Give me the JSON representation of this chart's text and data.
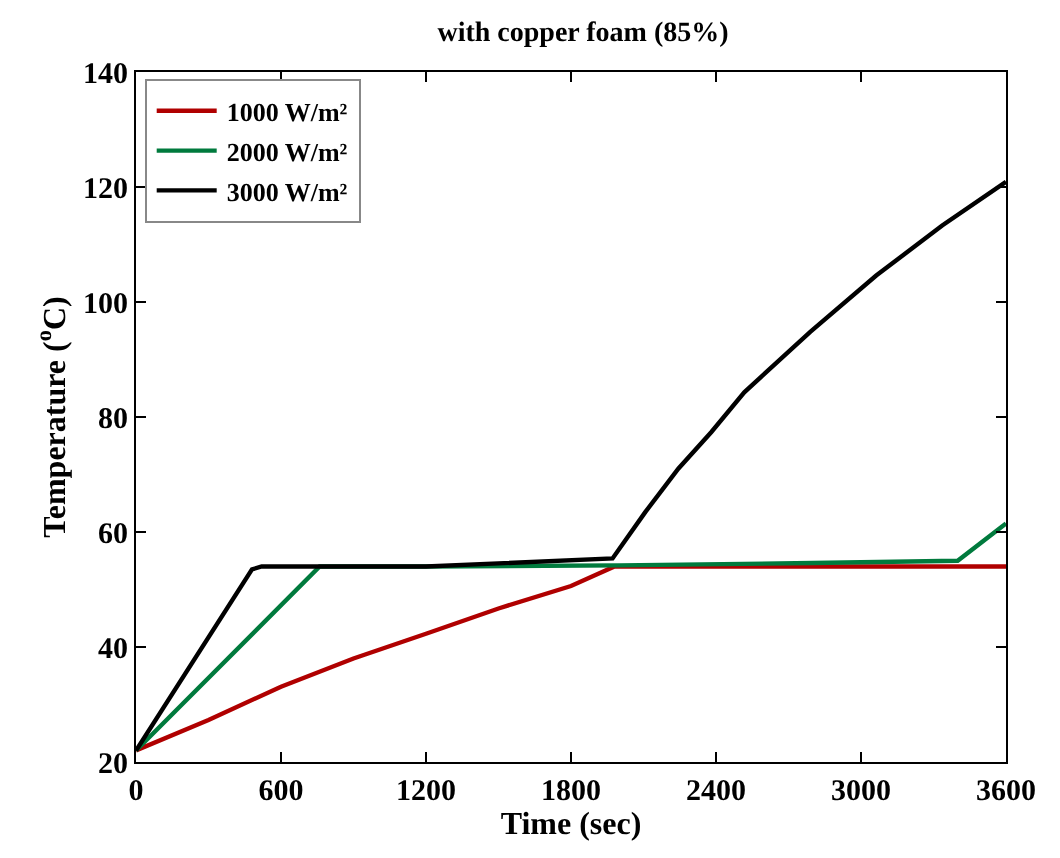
{
  "chart_data": {
    "type": "line",
    "title": "with copper foam (85%)",
    "xlabel": "Time (sec)",
    "ylabel": "Temperature ($^{o}$C)",
    "xlim": [
      0,
      3600
    ],
    "xticks": [
      0,
      600,
      1200,
      1800,
      2400,
      3000,
      3600
    ],
    "ylim": [
      20,
      140
    ],
    "yticks": [
      20,
      40,
      60,
      80,
      100,
      120,
      140
    ],
    "legend": "top left",
    "marker": "none",
    "line_style": "solid",
    "series": [
      {
        "name": "1000 W/m²",
        "color": "#b00000",
        "x": [
          0,
          300,
          600,
          900,
          1200,
          1500,
          1800,
          1980,
          2400,
          3000,
          3600
        ],
        "values": [
          22,
          27.3,
          33.1,
          38,
          42.3,
          46.7,
          50.6,
          54,
          54,
          54,
          54
        ]
      },
      {
        "name": "2000 W/m²",
        "color": "#007a3d",
        "x": [
          0,
          760,
          1200,
          2000,
          2800,
          3400,
          3600
        ],
        "values": [
          22,
          54,
          54,
          54.2,
          54.6,
          55,
          61.5
        ]
      },
      {
        "name": "3000 W/m²",
        "color": "#000000",
        "x": [
          0,
          480,
          520,
          1200,
          1972,
          2108,
          2244,
          2381,
          2517,
          2790,
          3063,
          3336,
          3600
        ],
        "values": [
          22,
          53.5,
          54,
          54,
          55.4,
          63.5,
          71,
          77.4,
          84.3,
          94.8,
          104.6,
          113.3,
          120.9
        ]
      }
    ]
  }
}
